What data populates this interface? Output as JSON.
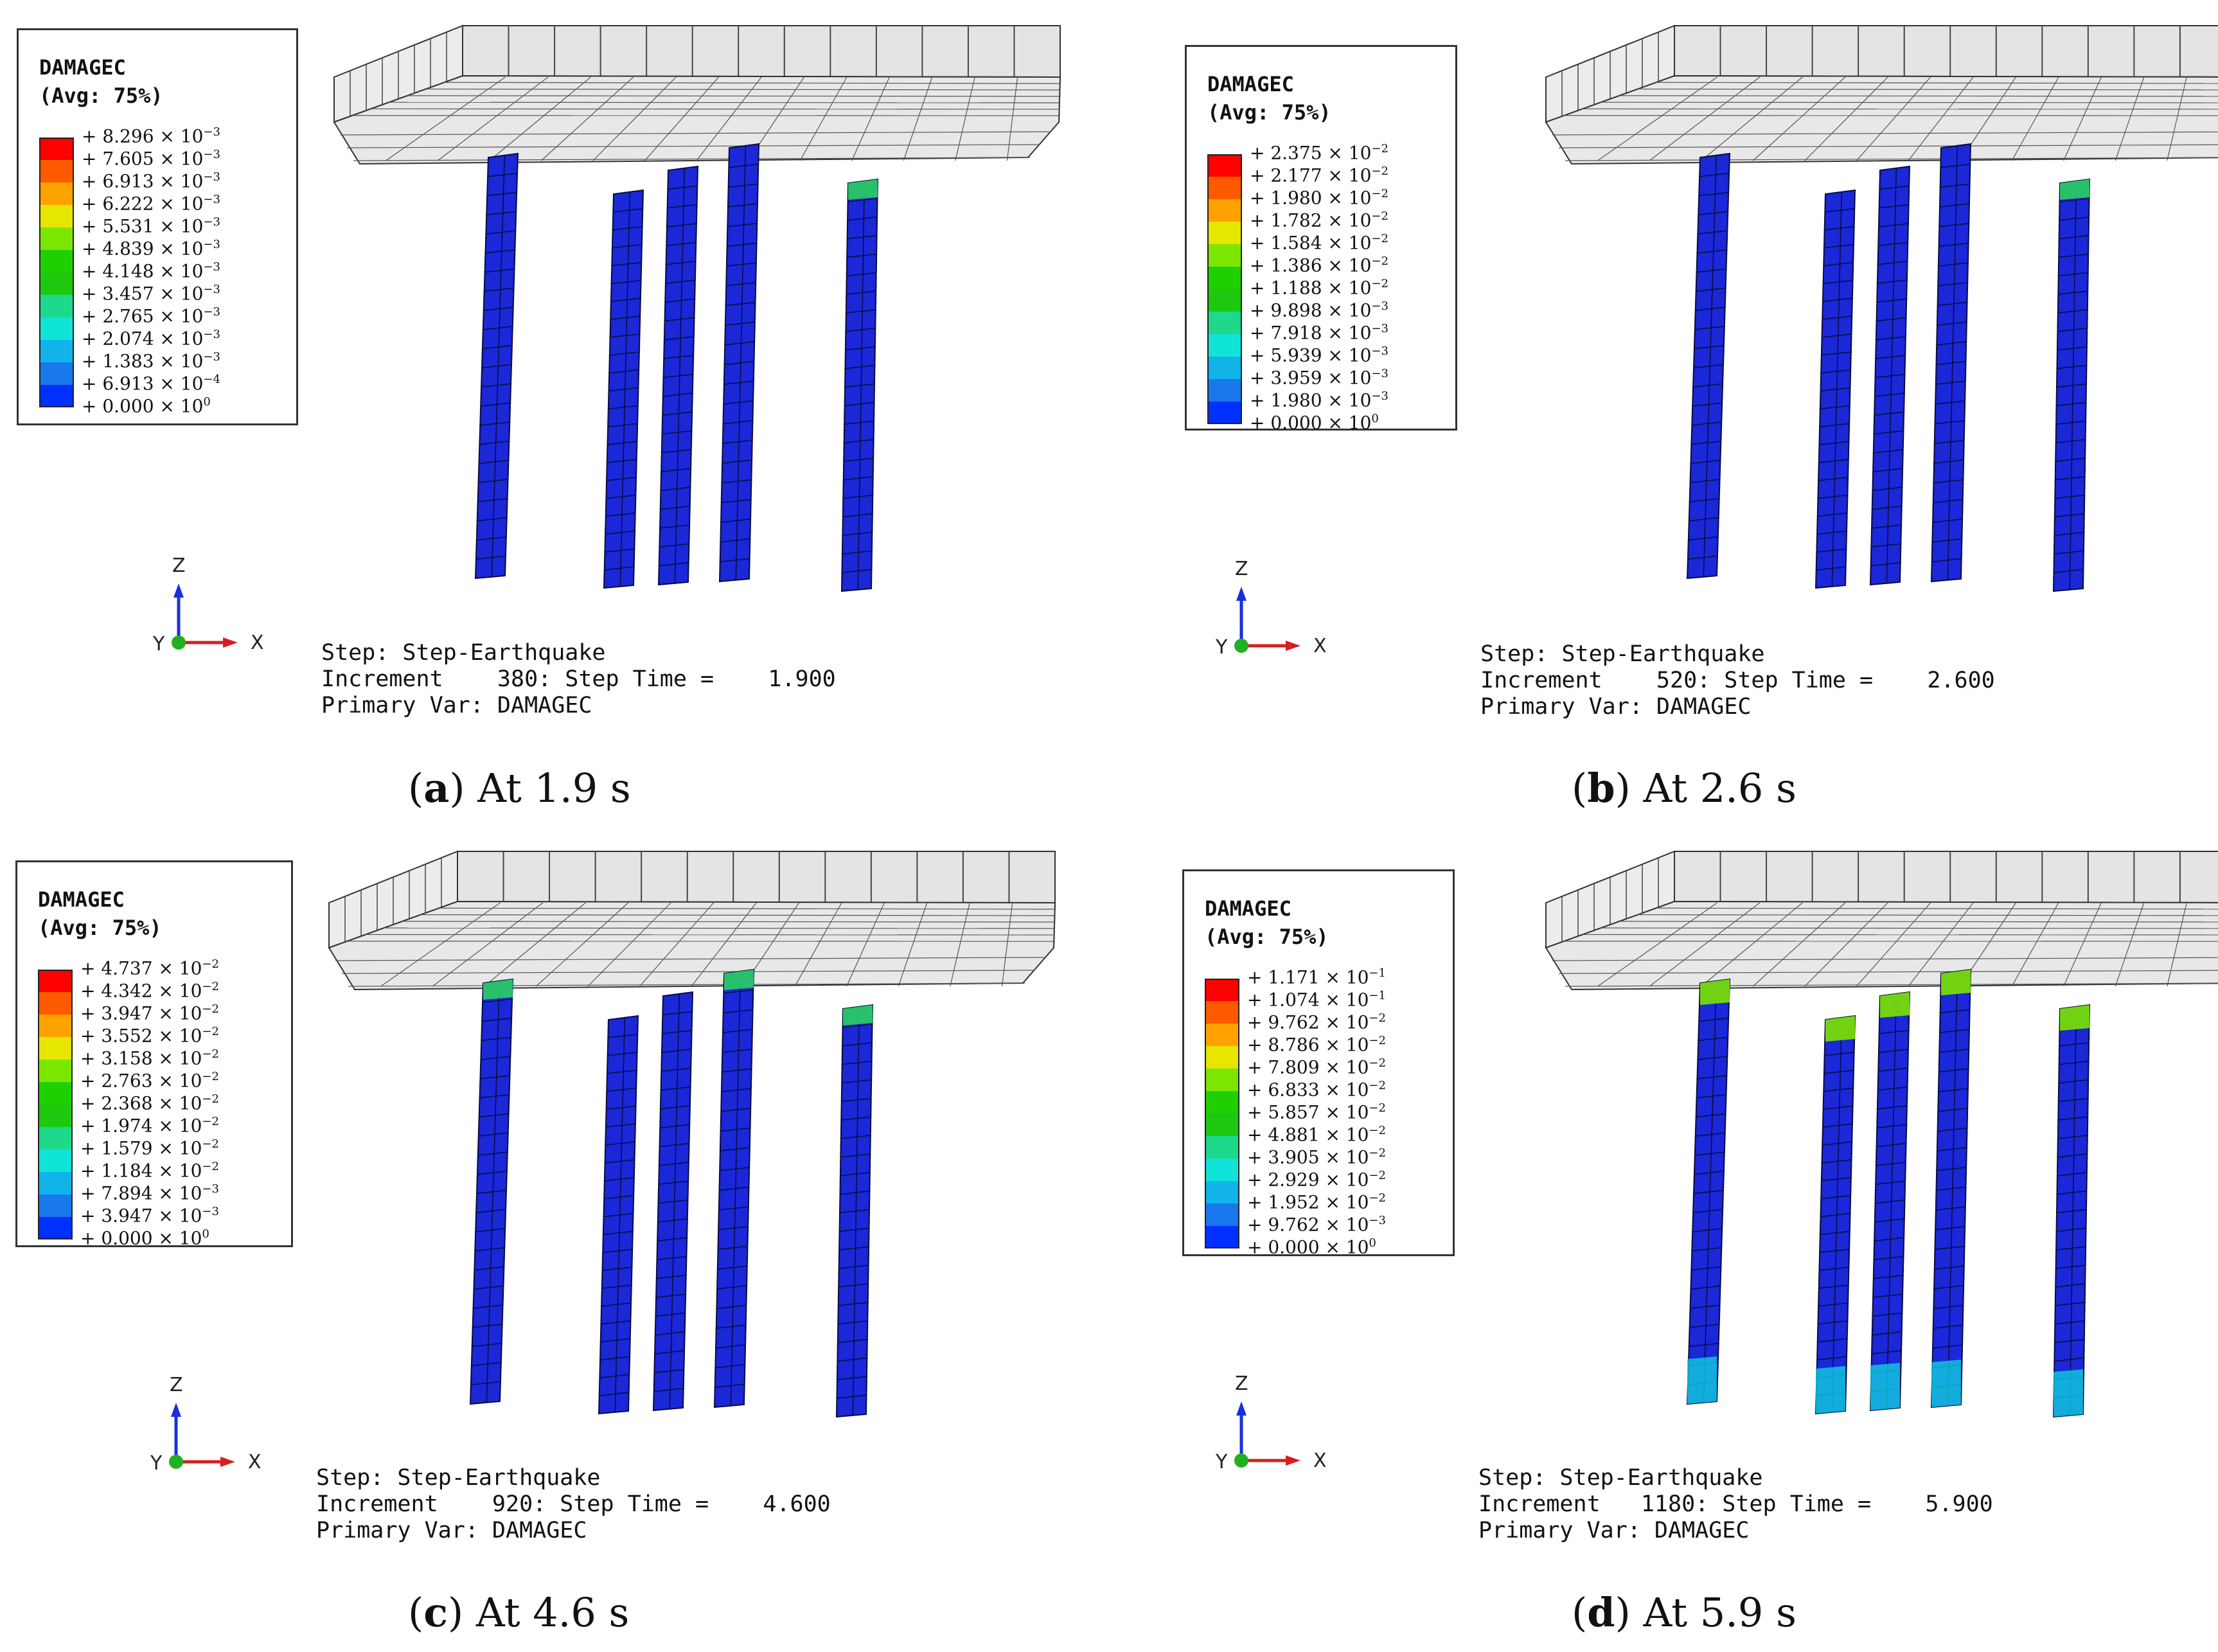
{
  "colors": {
    "legend_scale": [
      "#ff0000",
      "#ff5a00",
      "#ffa200",
      "#e6e600",
      "#7ce600",
      "#1ed000",
      "#1ec80f",
      "#1ed88c",
      "#10e4d8",
      "#10b4e8",
      "#1878ec",
      "#0030ff"
    ],
    "column": "#1a28d8",
    "slab": "#e4e4e4",
    "axis_z": "#1a2ee0",
    "axis_x": "#d42020",
    "axis_y": "#22b022"
  },
  "panels": [
    {
      "id": "a",
      "legend": {
        "title": "DAMAGEC",
        "subtitle": "(Avg: 75%)",
        "values": [
          {
            "mantissa": "+ 8.296 × 10",
            "exp": "−3"
          },
          {
            "mantissa": "+ 7.605 × 10",
            "exp": "−3"
          },
          {
            "mantissa": "+ 6.913 × 10",
            "exp": "−3"
          },
          {
            "mantissa": "+ 6.222 × 10",
            "exp": "−3"
          },
          {
            "mantissa": "+ 5.531 × 10",
            "exp": "−3"
          },
          {
            "mantissa": "+ 4.839 × 10",
            "exp": "−3"
          },
          {
            "mantissa": "+ 4.148 × 10",
            "exp": "−3"
          },
          {
            "mantissa": "+ 3.457 × 10",
            "exp": "−3"
          },
          {
            "mantissa": "+ 2.765 × 10",
            "exp": "−3"
          },
          {
            "mantissa": "+ 2.074 × 10",
            "exp": "−3"
          },
          {
            "mantissa": "+ 1.383 × 10",
            "exp": "−3"
          },
          {
            "mantissa": "+ 6.913 × 10",
            "exp": "−4"
          },
          {
            "mantissa": "+ 0.000 × 10",
            "exp": "0"
          }
        ]
      },
      "status": {
        "line1": "Step: Step-Earthquake",
        "line2": "Increment    380: Step Time =    1.900",
        "line3": "Primary Var: DAMAGEC"
      },
      "caption": {
        "letter": "a",
        "text": " At 1.9 s"
      },
      "axes": {
        "z": "Z",
        "x": "X",
        "y": "Y"
      },
      "damage": {
        "top": [
          0,
          0,
          0,
          0,
          1
        ],
        "bottom": [
          0,
          0,
          0,
          0,
          0
        ]
      }
    },
    {
      "id": "b",
      "legend": {
        "title": "DAMAGEC",
        "subtitle": "(Avg: 75%)",
        "values": [
          {
            "mantissa": "+ 2.375 × 10",
            "exp": "−2"
          },
          {
            "mantissa": "+ 2.177 × 10",
            "exp": "−2"
          },
          {
            "mantissa": "+ 1.980 × 10",
            "exp": "−2"
          },
          {
            "mantissa": "+ 1.782 × 10",
            "exp": "−2"
          },
          {
            "mantissa": "+ 1.584 × 10",
            "exp": "−2"
          },
          {
            "mantissa": "+ 1.386 × 10",
            "exp": "−2"
          },
          {
            "mantissa": "+ 1.188 × 10",
            "exp": "−2"
          },
          {
            "mantissa": "+ 9.898 × 10",
            "exp": "−3"
          },
          {
            "mantissa": "+ 7.918 × 10",
            "exp": "−3"
          },
          {
            "mantissa": "+ 5.939 × 10",
            "exp": "−3"
          },
          {
            "mantissa": "+ 3.959 × 10",
            "exp": "−3"
          },
          {
            "mantissa": "+ 1.980 × 10",
            "exp": "−3"
          },
          {
            "mantissa": "+ 0.000 × 10",
            "exp": "0"
          }
        ]
      },
      "status": {
        "line1": "Step: Step-Earthquake",
        "line2": "Increment    520: Step Time =    2.600",
        "line3": "Primary Var: DAMAGEC"
      },
      "caption": {
        "letter": "b",
        "text": " At 2.6 s"
      },
      "axes": {
        "z": "Z",
        "x": "X",
        "y": "Y"
      },
      "damage": {
        "top": [
          0,
          0,
          0,
          0,
          1
        ],
        "bottom": [
          0,
          0,
          0,
          0,
          0
        ]
      }
    },
    {
      "id": "c",
      "legend": {
        "title": "DAMAGEC",
        "subtitle": "(Avg: 75%)",
        "values": [
          {
            "mantissa": "+ 4.737 × 10",
            "exp": "−2"
          },
          {
            "mantissa": "+ 4.342 × 10",
            "exp": "−2"
          },
          {
            "mantissa": "+ 3.947 × 10",
            "exp": "−2"
          },
          {
            "mantissa": "+ 3.552 × 10",
            "exp": "−2"
          },
          {
            "mantissa": "+ 3.158 × 10",
            "exp": "−2"
          },
          {
            "mantissa": "+ 2.763 × 10",
            "exp": "−2"
          },
          {
            "mantissa": "+ 2.368 × 10",
            "exp": "−2"
          },
          {
            "mantissa": "+ 1.974 × 10",
            "exp": "−2"
          },
          {
            "mantissa": "+ 1.579 × 10",
            "exp": "−2"
          },
          {
            "mantissa": "+ 1.184 × 10",
            "exp": "−2"
          },
          {
            "mantissa": "+ 7.894 × 10",
            "exp": "−3"
          },
          {
            "mantissa": "+ 3.947 × 10",
            "exp": "−3"
          },
          {
            "mantissa": "+ 0.000 × 10",
            "exp": "0"
          }
        ]
      },
      "status": {
        "line1": "Step: Step-Earthquake",
        "line2": "Increment    920: Step Time =    4.600",
        "line3": "Primary Var: DAMAGEC"
      },
      "caption": {
        "letter": "c",
        "text": " At 4.6 s"
      },
      "axes": {
        "z": "Z",
        "x": "X",
        "y": "Y"
      },
      "damage": {
        "top": [
          1,
          0,
          0,
          1,
          1
        ],
        "bottom": [
          0,
          0,
          0,
          0,
          0
        ]
      }
    },
    {
      "id": "d",
      "legend": {
        "title": "DAMAGEC",
        "subtitle": "(Avg: 75%)",
        "values": [
          {
            "mantissa": "+ 1.171 × 10",
            "exp": "−1"
          },
          {
            "mantissa": "+ 1.074 × 10",
            "exp": "−1"
          },
          {
            "mantissa": "+ 9.762 × 10",
            "exp": "−2"
          },
          {
            "mantissa": "+ 8.786 × 10",
            "exp": "−2"
          },
          {
            "mantissa": "+ 7.809 × 10",
            "exp": "−2"
          },
          {
            "mantissa": "+ 6.833 × 10",
            "exp": "−2"
          },
          {
            "mantissa": "+ 5.857 × 10",
            "exp": "−2"
          },
          {
            "mantissa": "+ 4.881 × 10",
            "exp": "−2"
          },
          {
            "mantissa": "+ 3.905 × 10",
            "exp": "−2"
          },
          {
            "mantissa": "+ 2.929 × 10",
            "exp": "−2"
          },
          {
            "mantissa": "+ 1.952 × 10",
            "exp": "−2"
          },
          {
            "mantissa": "+ 9.762 × 10",
            "exp": "−3"
          },
          {
            "mantissa": "+ 0.000 × 10",
            "exp": "0"
          }
        ]
      },
      "status": {
        "line1": "Step: Step-Earthquake",
        "line2": "Increment   1180: Step Time =    5.900",
        "line3": "Primary Var: DAMAGEC"
      },
      "caption": {
        "letter": "d",
        "text": " At 5.9 s"
      },
      "axes": {
        "z": "Z",
        "x": "X",
        "y": "Y"
      },
      "damage": {
        "top": [
          2,
          2,
          2,
          2,
          2
        ],
        "bottom": [
          2,
          2,
          2,
          2,
          2
        ]
      }
    }
  ]
}
